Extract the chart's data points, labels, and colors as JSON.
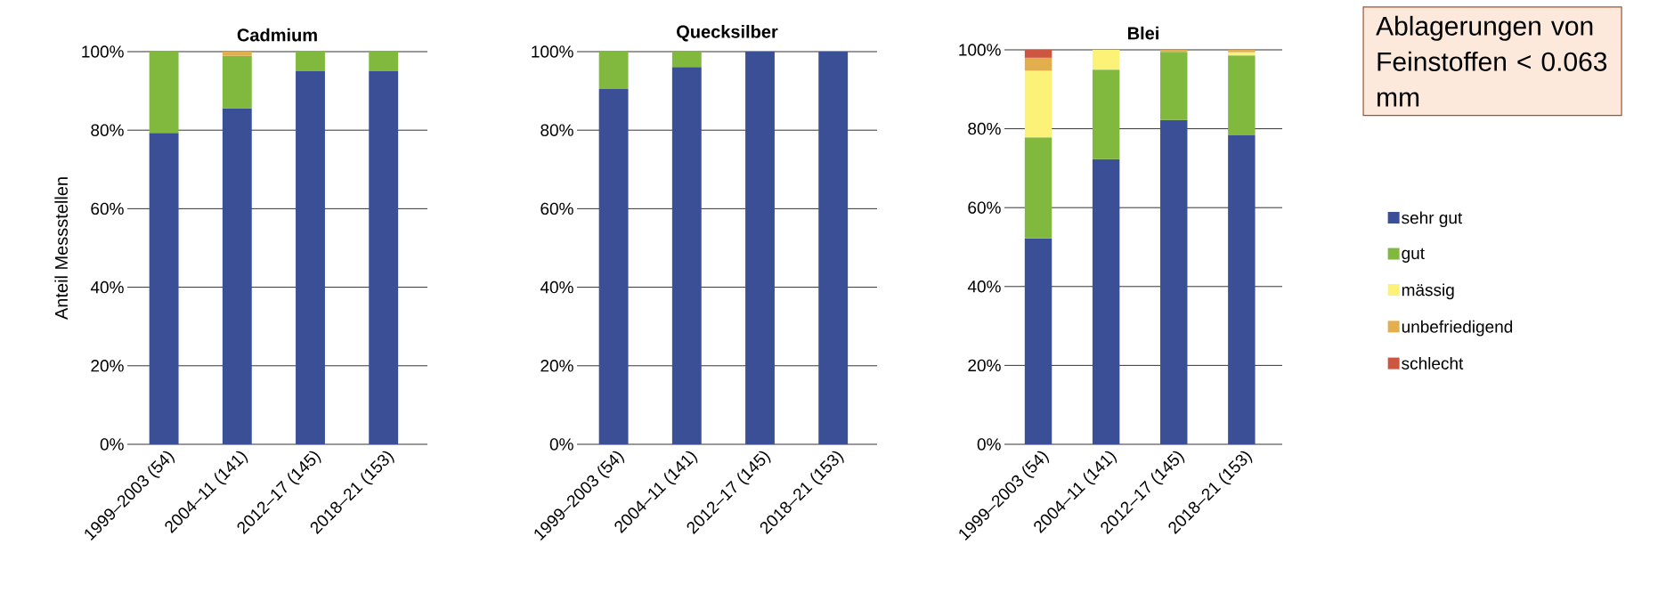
{
  "chart_data": [
    {
      "type": "bar",
      "stacked": true,
      "title": "Cadmium",
      "ylabel": "Anteil Messstellen",
      "categories": [
        "1999–2003 (54)",
        "2004–11 (141)",
        "2012–17 (145)",
        "2018–21 (153)"
      ],
      "ylim": [
        0,
        100
      ],
      "yticks": [
        {
          "value": 0,
          "label": "0%"
        },
        {
          "value": 20,
          "label": "20%"
        },
        {
          "value": 40,
          "label": "40%"
        },
        {
          "value": 60,
          "label": "60%"
        },
        {
          "value": 80,
          "label": "80%"
        },
        {
          "value": 100,
          "label": "100%"
        }
      ],
      "grid": "y",
      "series": [
        {
          "color": "#3b4f97",
          "values": [
            79.3,
            85.6,
            95,
            95
          ]
        },
        {
          "color": "#80b93e",
          "values": [
            20.7,
            13.3,
            5,
            5
          ]
        },
        {
          "color": "#e2ae4e",
          "values": [
            null,
            1.1,
            null,
            null
          ]
        }
      ]
    },
    {
      "type": "bar",
      "stacked": true,
      "title": "Quecksilber",
      "categories": [
        "1999–2003 (54)",
        "2004–11 (141)",
        "2012–17 (145)",
        "2018–21 (153)"
      ],
      "ylim": [
        0,
        100
      ],
      "yticks": [
        {
          "value": 0,
          "label": "0%"
        },
        {
          "value": 20,
          "label": "20%"
        },
        {
          "value": 40,
          "label": "40%"
        },
        {
          "value": 60,
          "label": "60%"
        },
        {
          "value": 80,
          "label": "80%"
        },
        {
          "value": 100,
          "label": "100%"
        }
      ],
      "grid": "y",
      "series": [
        {
          "color": "#3b4f97",
          "values": [
            90.5,
            96.1,
            100,
            100
          ]
        },
        {
          "color": "#80b93e",
          "values": [
            9.5,
            3.9,
            null,
            null
          ]
        }
      ]
    },
    {
      "type": "bar",
      "stacked": true,
      "title": "Blei",
      "categories": [
        "1999–2003 (54)",
        "2004–11 (141)",
        "2012–17 (145)",
        "2018–21 (153)"
      ],
      "ylim": [
        0,
        100
      ],
      "yticks": [
        {
          "value": 0,
          "label": "0%"
        },
        {
          "value": 20,
          "label": "20%"
        },
        {
          "value": 40,
          "label": "40%"
        },
        {
          "value": 60,
          "label": "60%"
        },
        {
          "value": 80,
          "label": "80%"
        },
        {
          "value": 100,
          "label": "100%"
        }
      ],
      "grid": "y",
      "legend": "right",
      "annotations": [
        "Ablagerungen von Feinstoffen < 0.063 mm"
      ],
      "series": [
        {
          "name": "sehr gut",
          "color": "#3b4f97",
          "values": [
            52.2,
            72.3,
            82.2,
            78.3
          ]
        },
        {
          "name": "gut",
          "color": "#80b93e",
          "values": [
            25.6,
            22.7,
            17.3,
            20.3
          ]
        },
        {
          "name": "mässig",
          "color": "#fbf277",
          "values": [
            16.9,
            5,
            null,
            0.8
          ]
        },
        {
          "name": "unbefriedigend",
          "color": "#e2ae4e",
          "values": [
            3.3,
            null,
            0.5,
            0.6
          ]
        },
        {
          "name": "schlecht",
          "color": "#cc5640",
          "values": [
            2,
            null,
            null,
            null
          ]
        }
      ]
    }
  ]
}
